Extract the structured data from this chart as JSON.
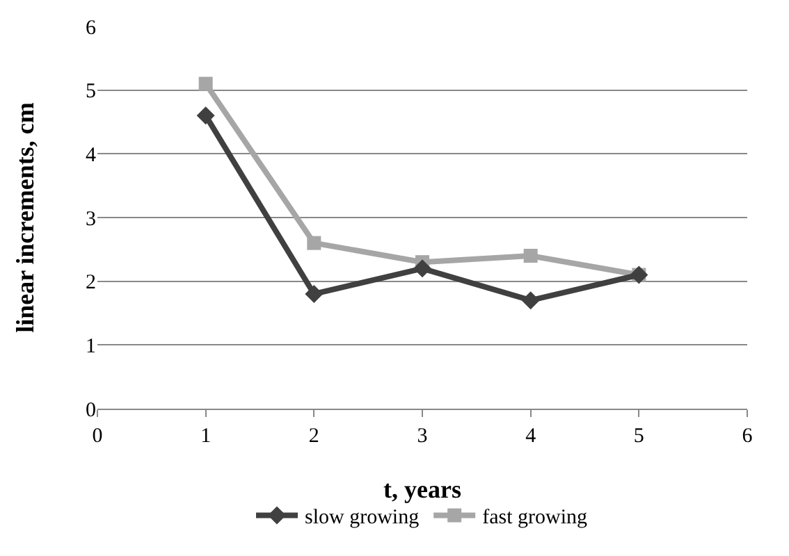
{
  "chart_data": {
    "type": "line",
    "xlabel": "t, years",
    "ylabel": "linear increments, cm",
    "x": [
      1,
      2,
      3,
      4,
      5
    ],
    "series": [
      {
        "name": "slow growing",
        "color": "#404040",
        "marker": "diamond",
        "values": [
          4.6,
          1.8,
          2.2,
          1.7,
          2.1
        ]
      },
      {
        "name": "fast growing",
        "color": "#a6a6a6",
        "marker": "square",
        "values": [
          5.1,
          2.6,
          2.3,
          2.4,
          2.1
        ]
      }
    ],
    "xlim": [
      0,
      6
    ],
    "xticks": [
      0,
      1,
      2,
      3,
      4,
      5,
      6
    ],
    "ylim": [
      0,
      6
    ],
    "yticks": [
      0,
      1,
      2,
      3,
      4,
      5,
      6
    ],
    "grid": "y",
    "legend": "bottom",
    "line_style": "solid"
  }
}
